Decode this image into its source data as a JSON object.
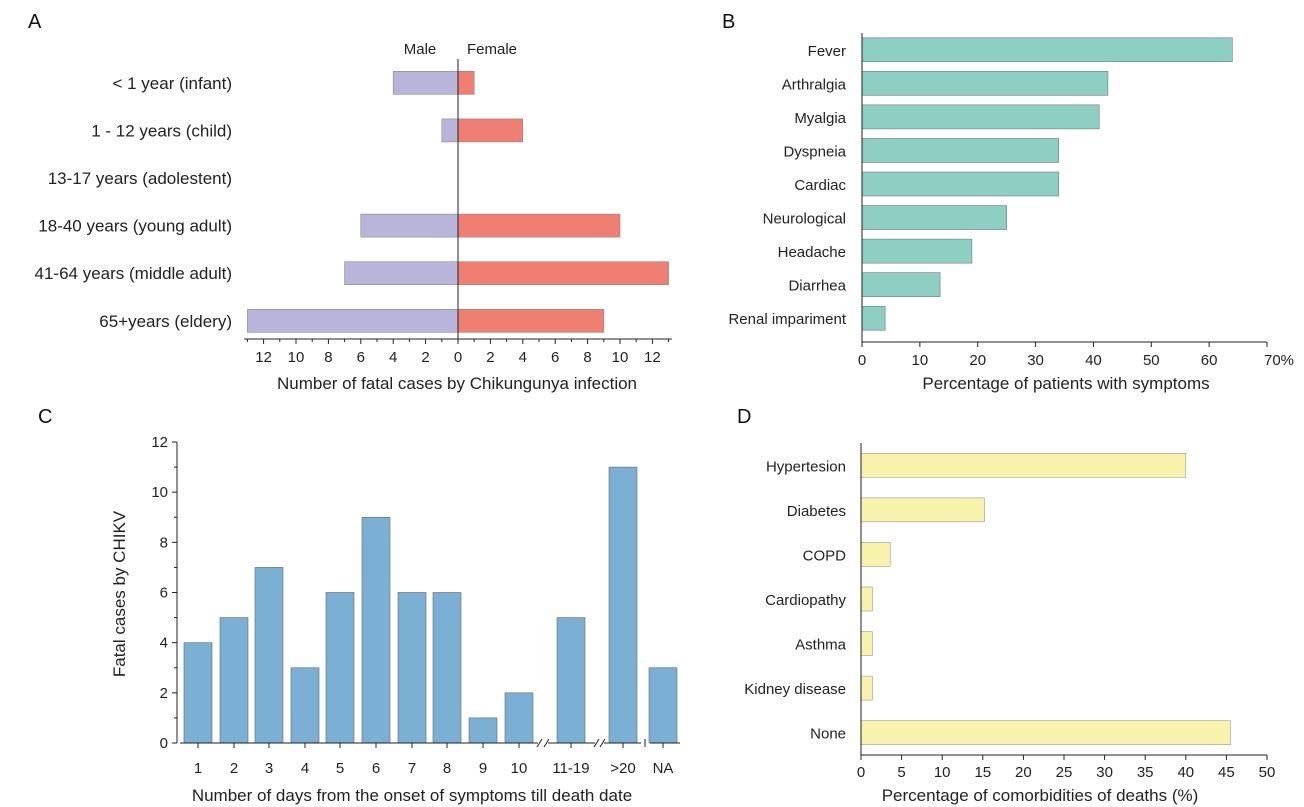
{
  "chart_data": [
    {
      "panel": "A",
      "type": "bar",
      "orientation": "horizontal",
      "categories": [
        "< 1 year (infant)",
        "1 - 12 years (child)",
        "13-17 years (adolestent)",
        "18-40 years (young adult)",
        "41-64 years (middle adult)",
        "65+years (eldery)"
      ],
      "series": [
        {
          "name": "Male",
          "values": [
            4,
            1,
            0,
            6,
            7,
            13
          ],
          "color": "#b9b5da"
        },
        {
          "name": "Female",
          "values": [
            1,
            4,
            0,
            10,
            13,
            9
          ],
          "color": "#ef7f72"
        }
      ],
      "xlabel": "Number of fatal cases by Chikungunya infection",
      "x_ticks_left": [
        "12",
        "10",
        "8",
        "6",
        "4",
        "2",
        "0"
      ],
      "x_ticks_right": [
        "2",
        "4",
        "6",
        "8",
        "10",
        "12"
      ],
      "xlim": [
        -13,
        13
      ]
    },
    {
      "panel": "B",
      "type": "bar",
      "orientation": "horizontal",
      "categories": [
        "Fever",
        "Arthralgia",
        "Myalgia",
        "Dyspneia",
        "Cardiac",
        "Neurological",
        "Headache",
        "Diarrhea",
        "Renal impariment"
      ],
      "values": [
        64,
        42.5,
        41,
        34,
        34,
        25,
        19,
        13.5,
        4
      ],
      "color": "#8ecfc3",
      "xlabel": "Percentage of patients with symptoms",
      "x_ticks": [
        "0",
        "10",
        "20",
        "30",
        "40",
        "50",
        "60",
        "70%"
      ],
      "xlim": [
        0,
        70
      ]
    },
    {
      "panel": "C",
      "type": "bar",
      "categories": [
        "1",
        "2",
        "3",
        "4",
        "5",
        "6",
        "7",
        "8",
        "9",
        "10",
        "11-19",
        ">20",
        "NA"
      ],
      "values": [
        4,
        5,
        7,
        3,
        6,
        9,
        6,
        6,
        1,
        2,
        5,
        11,
        3
      ],
      "color": "#7bafd4",
      "xlabel": "Number of days from the onset of symptoms till death date",
      "ylabel": "Fatal cases by CHIKV",
      "y_ticks": [
        "0",
        "2",
        "4",
        "6",
        "8",
        "10",
        "12"
      ],
      "ylim": [
        0,
        12
      ]
    },
    {
      "panel": "D",
      "type": "bar",
      "orientation": "horizontal",
      "categories": [
        "Hypertesion",
        "Diabetes",
        "COPD",
        "Cardiopathy",
        "Asthma",
        "Kidney disease",
        "None"
      ],
      "values": [
        40,
        15.2,
        3.6,
        1.4,
        1.4,
        1.4,
        45.5
      ],
      "color": "#f7f3ad",
      "xlabel": "Percentage of comorbidities of deaths (%)",
      "x_ticks": [
        "0",
        "5",
        "10",
        "15",
        "20",
        "25",
        "30",
        "35",
        "40",
        "45",
        "50"
      ],
      "xlim": [
        0,
        50
      ]
    }
  ]
}
